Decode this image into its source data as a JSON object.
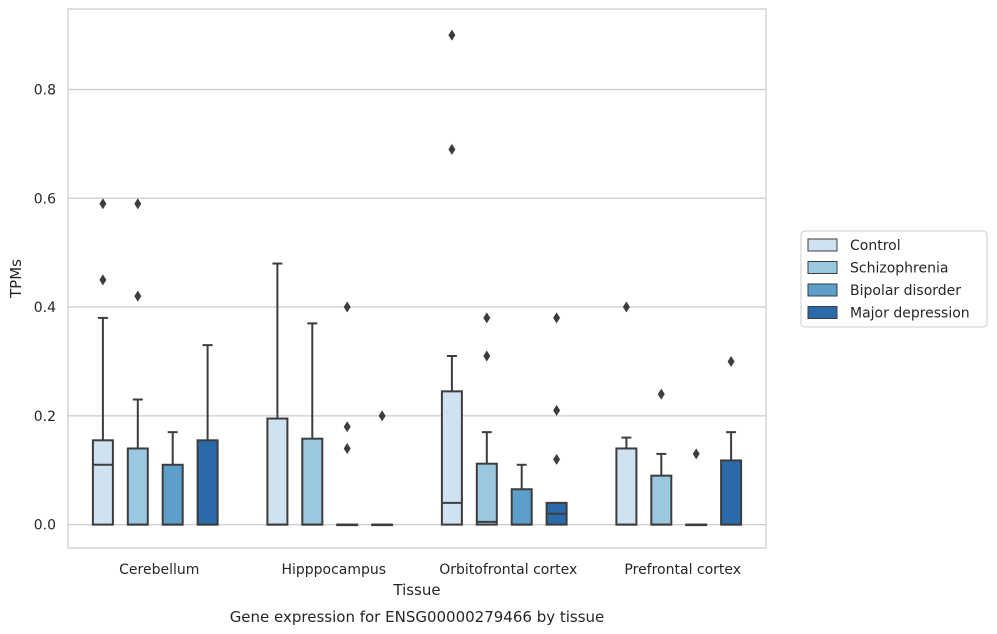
{
  "chart_data": {
    "type": "boxplot",
    "caption": "Gene expression for ENSG00000279466 by tissue",
    "xlabel": "Tissue",
    "ylabel": "TPMs",
    "ylim": [
      -0.043,
      0.948
    ],
    "yticks": [
      0.0,
      0.2,
      0.4,
      0.6,
      0.8
    ],
    "ytick_labels": [
      "0.0",
      "0.2",
      "0.4",
      "0.6",
      "0.8"
    ],
    "categories": [
      "Cerebellum",
      "Hipppocampus",
      "Orbitofrontal cortex",
      "Prefrontal cortex"
    ],
    "grid": "horizontal",
    "legend_position": "right",
    "series": [
      {
        "name": "Control",
        "color": "#d0e1f2",
        "boxes": [
          {
            "q1": 0.0,
            "median": 0.11,
            "q3": 0.155,
            "whisker_low": 0.0,
            "whisker_high": 0.38,
            "outliers": [
              0.45,
              0.59
            ]
          },
          {
            "q1": 0.0,
            "median": 0.0,
            "q3": 0.195,
            "whisker_low": 0.0,
            "whisker_high": 0.48,
            "outliers": []
          },
          {
            "q1": 0.0,
            "median": 0.04,
            "q3": 0.245,
            "whisker_low": 0.0,
            "whisker_high": 0.31,
            "outliers": [
              0.69,
              0.9
            ]
          },
          {
            "q1": 0.0,
            "median": 0.0,
            "q3": 0.14,
            "whisker_low": 0.0,
            "whisker_high": 0.16,
            "outliers": [
              0.4
            ]
          }
        ]
      },
      {
        "name": "Schizophrenia",
        "color": "#9ac8e0",
        "boxes": [
          {
            "q1": 0.0,
            "median": 0.0,
            "q3": 0.14,
            "whisker_low": 0.0,
            "whisker_high": 0.23,
            "outliers": [
              0.42,
              0.59
            ]
          },
          {
            "q1": 0.0,
            "median": 0.0,
            "q3": 0.158,
            "whisker_low": 0.0,
            "whisker_high": 0.37,
            "outliers": []
          },
          {
            "q1": 0.0,
            "median": 0.005,
            "q3": 0.112,
            "whisker_low": 0.0,
            "whisker_high": 0.17,
            "outliers": [
              0.31,
              0.38
            ]
          },
          {
            "q1": 0.0,
            "median": 0.0,
            "q3": 0.09,
            "whisker_low": 0.0,
            "whisker_high": 0.13,
            "outliers": [
              0.24
            ]
          }
        ]
      },
      {
        "name": "Bipolar disorder",
        "color": "#5c9fcb",
        "boxes": [
          {
            "q1": 0.0,
            "median": 0.0,
            "q3": 0.11,
            "whisker_low": 0.0,
            "whisker_high": 0.17,
            "outliers": []
          },
          {
            "q1": 0.0,
            "median": 0.0,
            "q3": 0.0,
            "whisker_low": 0.0,
            "whisker_high": 0.0,
            "outliers": [
              0.14,
              0.18,
              0.4
            ]
          },
          {
            "q1": 0.0,
            "median": 0.0,
            "q3": 0.065,
            "whisker_low": 0.0,
            "whisker_high": 0.11,
            "outliers": []
          },
          {
            "q1": 0.0,
            "median": 0.0,
            "q3": 0.0,
            "whisker_low": 0.0,
            "whisker_high": 0.0,
            "outliers": [
              0.13
            ]
          }
        ]
      },
      {
        "name": "Major depression",
        "color": "#2a6aab",
        "boxes": [
          {
            "q1": 0.0,
            "median": 0.0,
            "q3": 0.155,
            "whisker_low": 0.0,
            "whisker_high": 0.33,
            "outliers": []
          },
          {
            "q1": 0.0,
            "median": 0.0,
            "q3": 0.0,
            "whisker_low": 0.0,
            "whisker_high": 0.0,
            "outliers": [
              0.2
            ]
          },
          {
            "q1": 0.0,
            "median": 0.02,
            "q3": 0.04,
            "whisker_low": 0.0,
            "whisker_high": 0.04,
            "outliers": [
              0.12,
              0.21,
              0.38
            ]
          },
          {
            "q1": 0.0,
            "median": 0.0,
            "q3": 0.118,
            "whisker_low": 0.0,
            "whisker_high": 0.17,
            "outliers": [
              0.3
            ]
          }
        ]
      }
    ]
  }
}
